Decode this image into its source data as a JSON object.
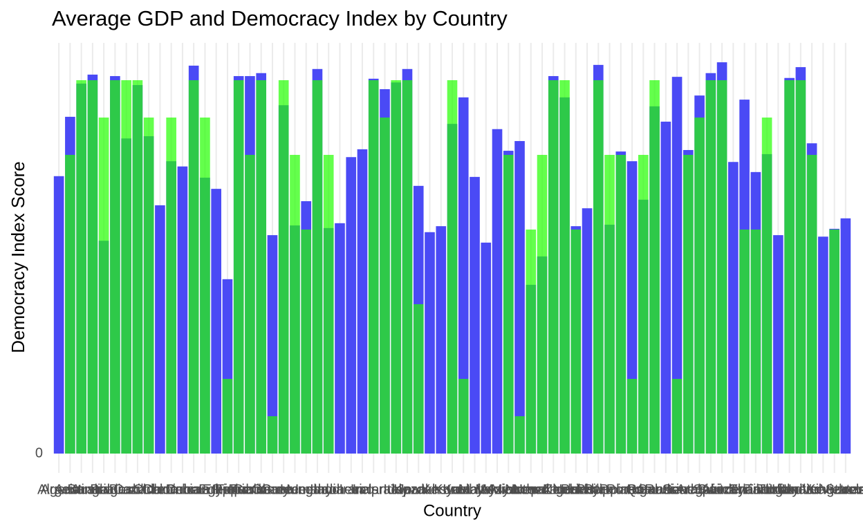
{
  "chart_data": {
    "type": "bar",
    "title": "Average GDP and Democracy Index by Country",
    "x_label": "Country",
    "y_label": "Democracy Index Score",
    "categories": [
      "Algeria",
      "Argentina",
      "Australia",
      "Austria",
      "Bangladesh",
      "Belgium",
      "Brazil",
      "Canada",
      "Chile",
      "China",
      "Colombia",
      "Cuba",
      "Denmark",
      "Dominican Republic",
      "Egypt",
      "Ethiopia",
      "Finland",
      "France",
      "Germany",
      "Ghana",
      "Greece",
      "Guatemala",
      "Hungary",
      "Iceland",
      "India",
      "Indonesia",
      "Iran",
      "Iraq",
      "Ireland",
      "Israel",
      "Italy",
      "Japan",
      "Jordan",
      "Kazakhstan",
      "Kenya",
      "Korea",
      "Kuwait",
      "Libya",
      "Malaysia",
      "Mexico",
      "Morocco",
      "Myanmar",
      "Nepal",
      "Netherlands",
      "New Zealand",
      "Nigeria",
      "Norway",
      "Pakistan",
      "Peru",
      "Philippines",
      "Poland",
      "Portugal",
      "Qatar",
      "Romania",
      "Russia",
      "Saudi Arabia",
      "Senegal",
      "South Africa",
      "Spain",
      "Sweden",
      "Switzerland",
      "Syria",
      "Thailand",
      "Tunisia",
      "Turkey",
      "Uganda",
      "Ukraine",
      "United Kingdom",
      "United States",
      "Venezuela",
      "Vietnam"
    ],
    "series": [
      {
        "color": "#4a4af5",
        "alpha": 1,
        "values": [
          7.43,
          9.02,
          9.91,
          10.15,
          5.7,
          10.11,
          8.44,
          9.87,
          8.5,
          6.65,
          7.83,
          7.69,
          10.39,
          7.39,
          7.09,
          4.67,
          10.11,
          10.11,
          10.19,
          5.85,
          9.33,
          6.11,
          6.76,
          10.3,
          6.04,
          6.17,
          7.94,
          8.15,
          10.04,
          9.76,
          9.94,
          10.3,
          7.17,
          5.93,
          6.09,
          8.83,
          9.54,
          7.41,
          5.65,
          8.69,
          8.11,
          8.37,
          4.52,
          5.28,
          10.11,
          9.54,
          6.09,
          6.57,
          10.41,
          6.13,
          8.09,
          7.83,
          6.8,
          9.3,
          8.89,
          10.09,
          8.13,
          9.59,
          10.19,
          10.48,
          7.81,
          9.48,
          7.54,
          8.02,
          5.85,
          10.06,
          10.35,
          8.31,
          5.81,
          6.02,
          6.3
        ]
      },
      {
        "color": "#22ff00",
        "alpha": 0.7,
        "values": [
          null,
          8,
          10,
          10,
          9,
          10,
          10,
          10,
          9,
          null,
          9,
          null,
          10,
          9,
          null,
          2,
          10,
          8,
          10,
          1,
          10,
          8,
          6,
          10,
          8,
          null,
          null,
          null,
          10,
          9,
          10,
          10,
          4,
          null,
          null,
          10,
          2,
          null,
          null,
          null,
          8,
          1,
          6,
          8,
          10,
          10,
          6,
          null,
          10,
          8,
          8,
          2,
          8,
          10,
          null,
          2,
          8,
          9,
          10,
          10,
          null,
          6,
          6,
          9,
          null,
          10,
          10,
          8,
          null,
          6,
          null
        ]
      }
    ],
    "ylim": [
      0,
      11
    ],
    "yticks": [
      0
    ],
    "grid": "x"
  }
}
